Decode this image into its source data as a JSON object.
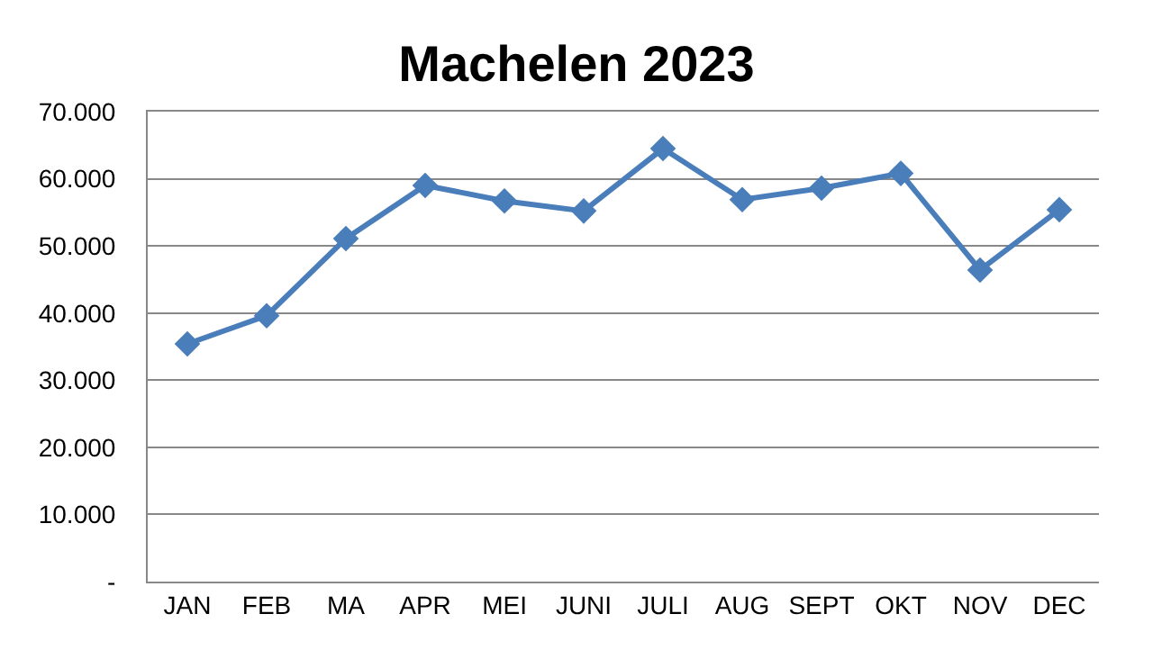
{
  "chart_data": {
    "type": "line",
    "title": "Machelen 2023",
    "categories": [
      "JAN",
      "FEB",
      "MA",
      "APR",
      "MEI",
      "JUNI",
      "JULI",
      "AUG",
      "SEPT",
      "OKT",
      "NOV",
      "DEC"
    ],
    "series": [
      {
        "color": "#4a7ebb",
        "values": [
          35400,
          39600,
          51100,
          59000,
          56700,
          55200,
          64500,
          56900,
          58600,
          60800,
          46400,
          55400
        ]
      }
    ],
    "ylim": [
      0,
      70000
    ],
    "yticks": [
      {
        "value": 0,
        "label": "-"
      },
      {
        "value": 10000,
        "label": "10.000"
      },
      {
        "value": 20000,
        "label": "20.000"
      },
      {
        "value": 30000,
        "label": "30.000"
      },
      {
        "value": 40000,
        "label": "40.000"
      },
      {
        "value": 50000,
        "label": "50.000"
      },
      {
        "value": 60000,
        "label": "60.000"
      },
      {
        "value": 70000,
        "label": "70.000"
      }
    ],
    "grid": "y",
    "marker": "diamond",
    "line_style": "solid"
  }
}
